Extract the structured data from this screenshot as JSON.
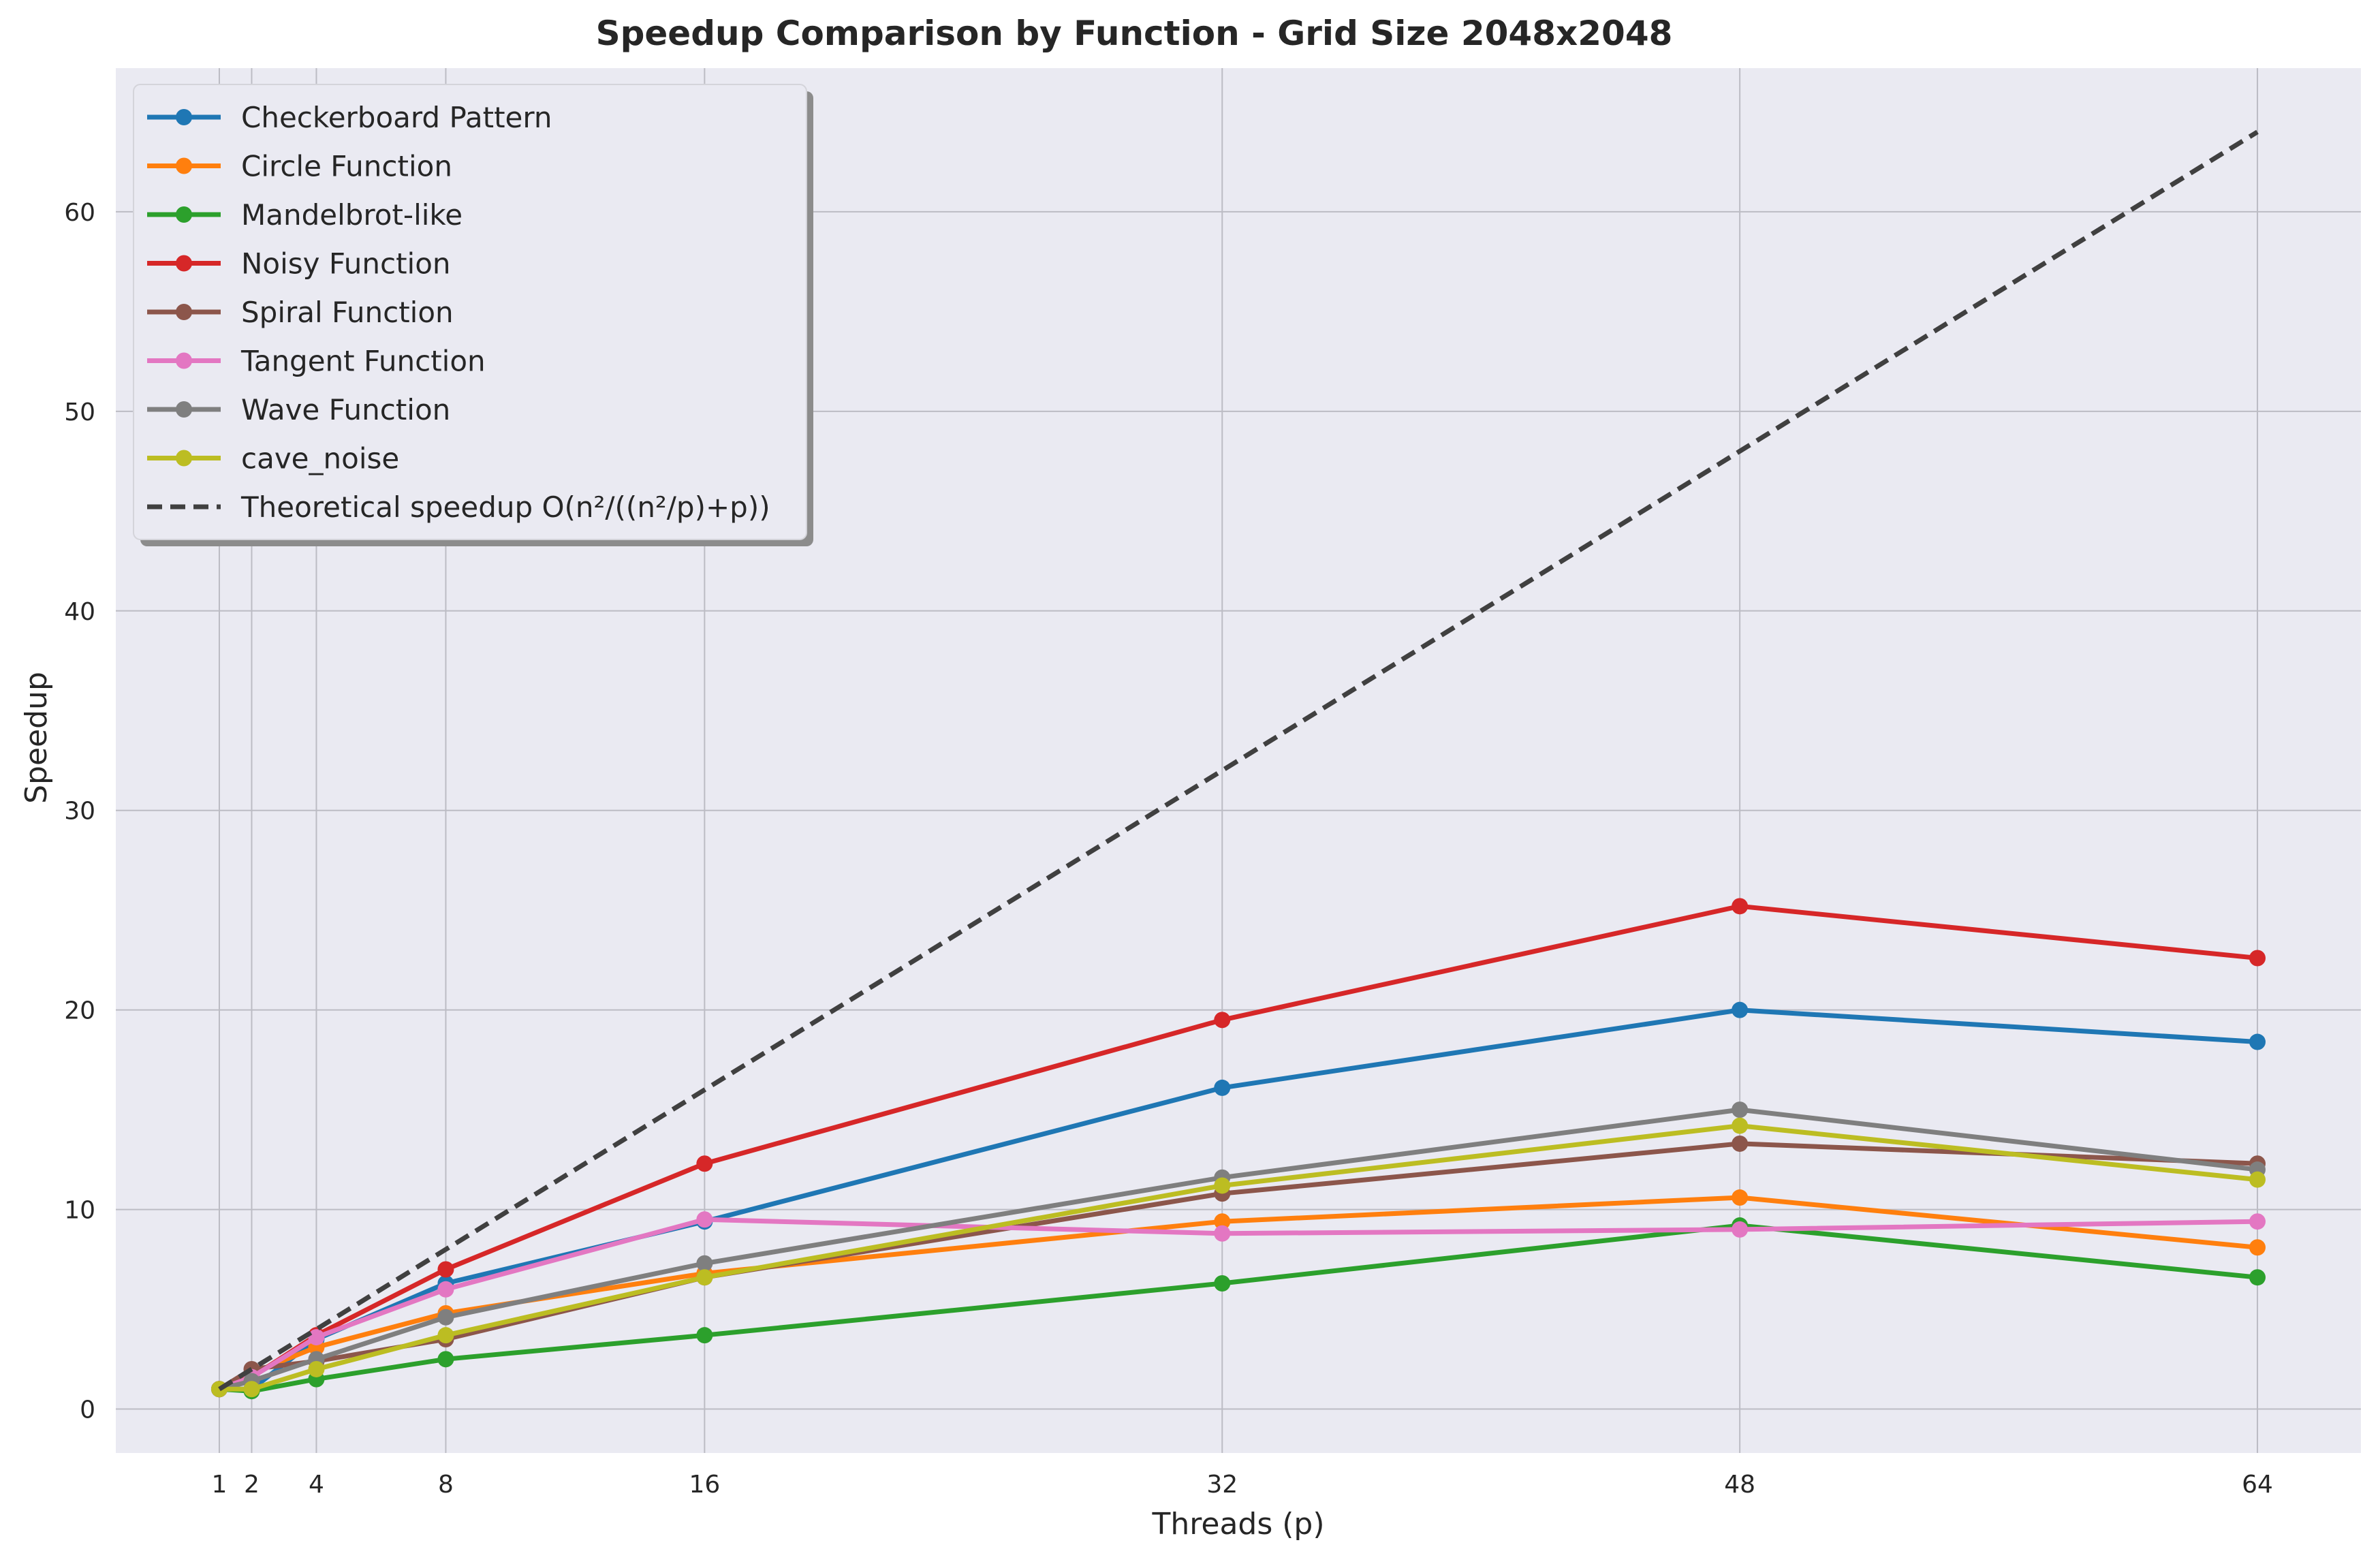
{
  "chart_data": {
    "type": "line",
    "title": "Speedup Comparison by Function - Grid Size 2048x2048",
    "xlabel": "Threads (p)",
    "ylabel": "Speedup",
    "x": [
      1,
      2,
      4,
      8,
      16,
      32,
      48,
      64
    ],
    "xticks": [
      1,
      2,
      4,
      8,
      16,
      32,
      48,
      64
    ],
    "yticks": [
      0,
      10,
      20,
      30,
      40,
      50,
      60
    ],
    "xlim": [
      -2.2,
      67.2
    ],
    "ylim": [
      -2.2,
      67.2
    ],
    "grid": true,
    "legend_position": "top-left",
    "background": "#eaeaf2",
    "series": [
      {
        "name": "Checkerboard Pattern",
        "color": "#1f77b4",
        "marker": "circle",
        "values": [
          1.0,
          1.0,
          3.5,
          6.3,
          9.4,
          16.1,
          20.0,
          18.4
        ]
      },
      {
        "name": "Circle Function",
        "color": "#ff7f0e",
        "marker": "circle",
        "values": [
          1.0,
          1.8,
          3.1,
          4.8,
          6.8,
          9.4,
          10.6,
          8.1
        ]
      },
      {
        "name": "Mandelbrot-like",
        "color": "#2ca02c",
        "marker": "circle",
        "values": [
          1.0,
          0.9,
          1.5,
          2.5,
          3.7,
          6.3,
          9.2,
          6.6
        ]
      },
      {
        "name": "Noisy Function",
        "color": "#d62728",
        "marker": "circle",
        "values": [
          1.0,
          1.6,
          3.7,
          7.0,
          12.3,
          19.5,
          25.2,
          22.6
        ]
      },
      {
        "name": "Spiral Function",
        "color": "#8c564b",
        "marker": "circle",
        "values": [
          1.0,
          2.0,
          2.4,
          3.5,
          6.6,
          10.8,
          13.3,
          12.3
        ]
      },
      {
        "name": "Tangent Function",
        "color": "#e377c2",
        "marker": "circle",
        "values": [
          1.0,
          1.6,
          3.6,
          6.0,
          9.5,
          8.8,
          9.0,
          9.4
        ]
      },
      {
        "name": "Wave Function",
        "color": "#7f7f7f",
        "marker": "circle",
        "values": [
          1.0,
          1.4,
          2.5,
          4.6,
          7.3,
          11.6,
          15.0,
          12.0
        ]
      },
      {
        "name": "cave_noise",
        "color": "#bcbd22",
        "marker": "circle",
        "values": [
          1.0,
          1.0,
          2.0,
          3.7,
          6.6,
          11.2,
          14.2,
          11.5
        ]
      },
      {
        "name": "Theoretical speedup O(n²/((n²/p)+p))",
        "color": "#404040",
        "marker": "none",
        "dashed": true,
        "values": [
          1.0,
          2.0,
          4.0,
          8.0,
          16.0,
          32.0,
          48.0,
          64.0
        ]
      }
    ]
  }
}
